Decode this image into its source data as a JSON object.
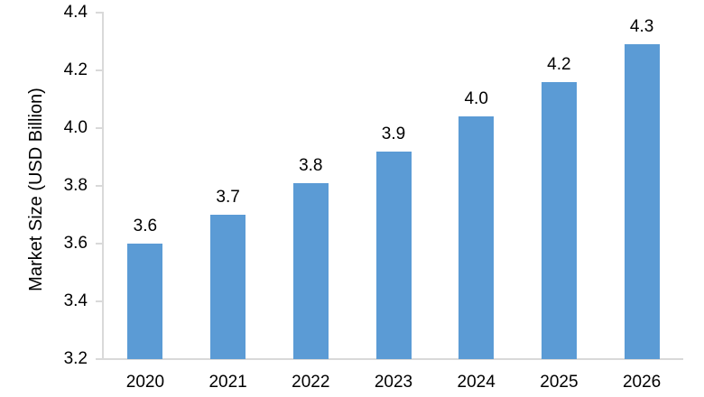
{
  "chart_data": {
    "type": "bar",
    "categories": [
      "2020",
      "2021",
      "2022",
      "2023",
      "2024",
      "2025",
      "2026"
    ],
    "values": [
      3.6,
      3.7,
      3.81,
      3.92,
      4.04,
      4.16,
      4.29
    ],
    "data_labels": [
      "3.6",
      "3.7",
      "3.8",
      "3.9",
      "4.0",
      "4.2",
      "4.3"
    ],
    "ylabel": "Market Size (USD Billion)",
    "ylim": [
      3.2,
      4.4
    ],
    "ytick_interval": 0.2,
    "yticks": [
      "3.2",
      "3.4",
      "3.6",
      "3.8",
      "4.0",
      "4.2",
      "4.4"
    ],
    "grid": false,
    "legend": false,
    "colors": {
      "bar": "#5B9BD5",
      "axis": "#D9D9D9",
      "text": "#000000",
      "background": "#FFFFFF"
    }
  }
}
